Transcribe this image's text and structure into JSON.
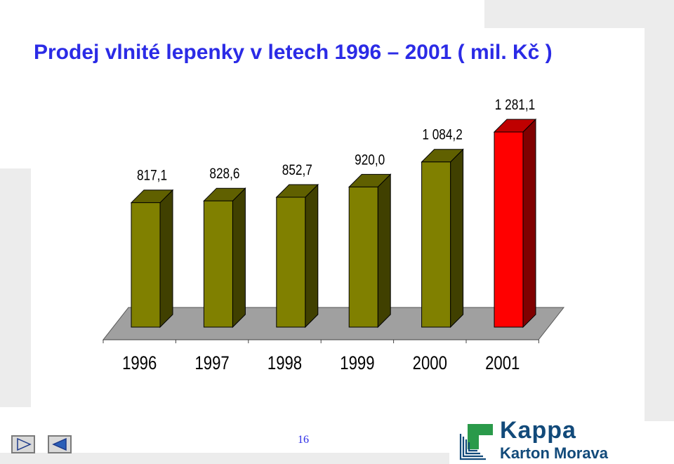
{
  "slide": {
    "title": "Prodej vlnité lepenky v letech 1996 – 2001 ( mil. Kč )",
    "page_number": "16"
  },
  "logo": {
    "name": "Kappa",
    "subtitle": "Karton Morava",
    "color": "#124a7a",
    "accent_color": "#2a9a4a"
  },
  "navigation": {
    "next_icon": "play-right-icon",
    "prev_icon": "play-left-icon"
  },
  "colors": {
    "title": "#2b2be6",
    "bar": "#808000",
    "bar_highlight": "#ff0000",
    "floor": "#a0a0a0"
  },
  "chart_data": {
    "type": "bar",
    "title": "",
    "xlabel": "",
    "ylabel": "",
    "categories": [
      "1996",
      "1997",
      "1998",
      "1999",
      "2000",
      "2001"
    ],
    "values": [
      817.1,
      828.6,
      852.7,
      920.0,
      1084.2,
      1281.1
    ],
    "value_labels": [
      "817,1",
      "828,6",
      "852,7",
      "920,0",
      "1 084,2",
      "1 281,1"
    ],
    "highlight_index": 5,
    "ylim": [
      0,
      1281.1
    ],
    "style": "3d",
    "grid": false,
    "legend": "none"
  }
}
